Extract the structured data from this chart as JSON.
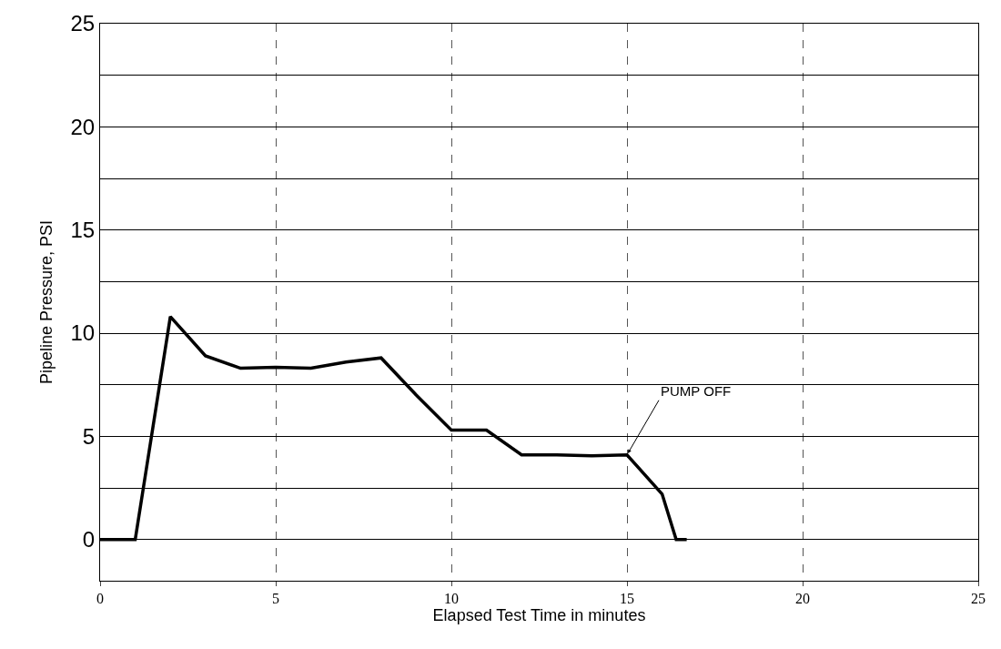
{
  "chart_data": {
    "type": "line",
    "xlabel": "Elapsed Test Time in minutes",
    "ylabel": "Pipeline Pressure, PSI",
    "x": [
      0,
      1,
      2,
      3,
      4,
      5,
      6,
      7,
      8,
      9,
      10,
      11,
      12,
      13,
      14,
      15,
      16,
      16.4,
      16.7
    ],
    "series": [
      {
        "color": "#000000",
        "values": [
          0,
          0,
          10.8,
          8.9,
          8.3,
          8.35,
          8.3,
          8.6,
          8.8,
          7,
          5.3,
          5.3,
          4.1,
          4.1,
          4.05,
          4.1,
          2.2,
          0,
          0
        ]
      }
    ],
    "xlim": [
      0,
      25
    ],
    "ylim": [
      -2,
      25
    ],
    "xticks": [
      0,
      5,
      10,
      15,
      20,
      25
    ],
    "yticks": [
      0,
      {
        "value": 2.5,
        "label": null
      },
      5,
      {
        "value": 7.5,
        "label": null
      },
      10,
      {
        "value": 12.5,
        "label": null
      },
      15,
      {
        "value": 17.5,
        "label": null
      },
      20,
      {
        "value": 22.5,
        "label": null
      },
      25
    ],
    "grid": true,
    "marker": "none",
    "line_style": "solid",
    "annotations": [
      {
        "text": "PUMP OFF",
        "x": 15,
        "y": 4.1
      }
    ]
  }
}
